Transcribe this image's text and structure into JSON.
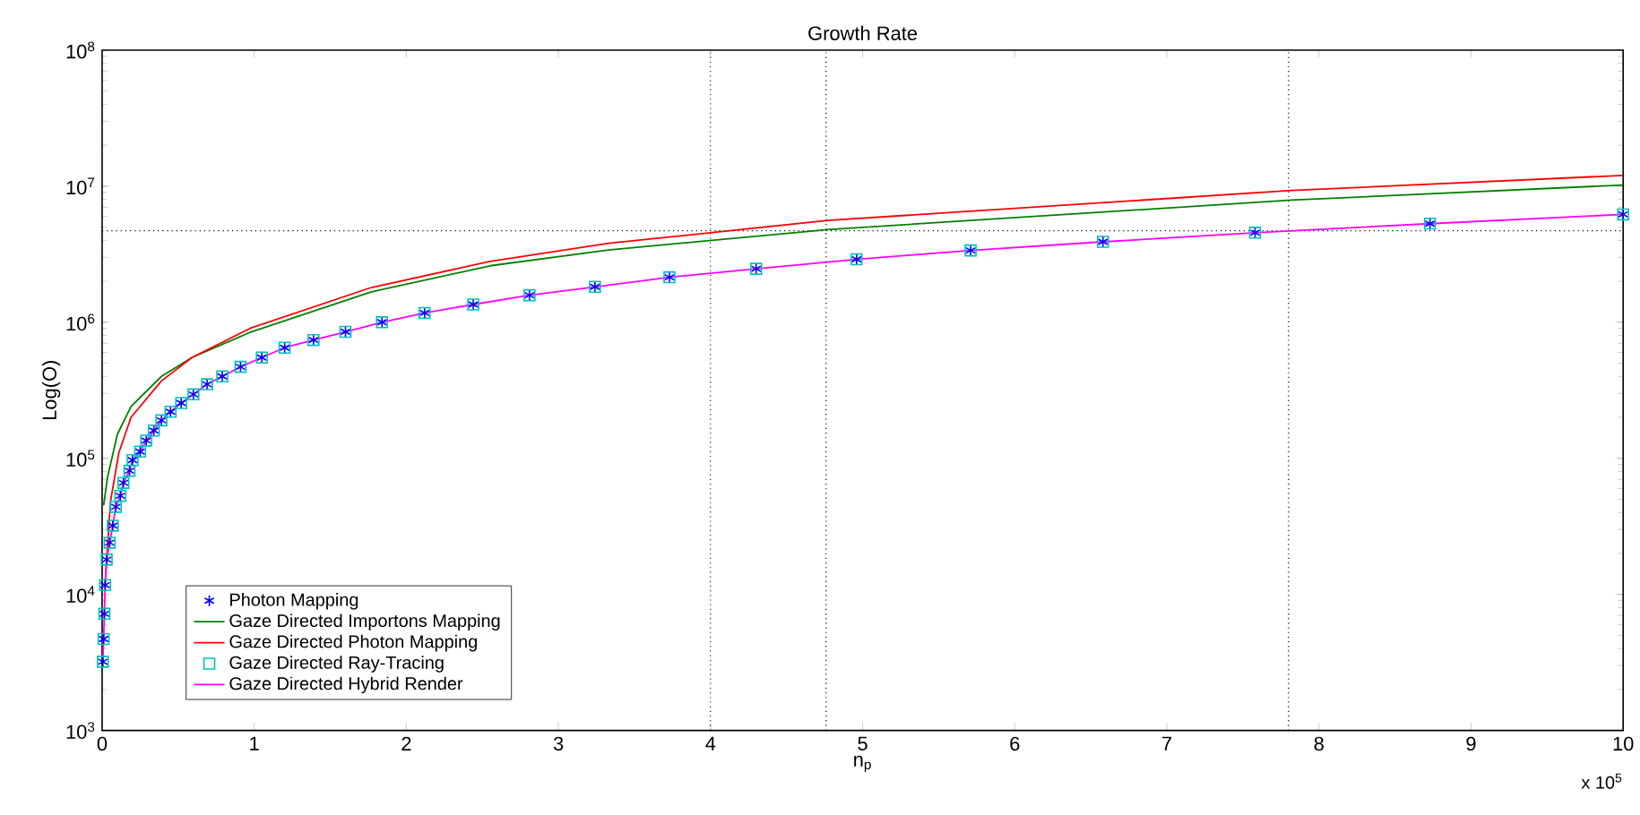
{
  "chart_data": {
    "type": "line",
    "title": "Growth Rate",
    "xlabel": "n$_{p}$",
    "ylabel": "Log(O)",
    "annotations": [
      "x 10$^{5}$"
    ],
    "log": "y",
    "xlim": [
      0,
      10
    ],
    "xticks": [
      0,
      1,
      2,
      3,
      4,
      5,
      6,
      7,
      8,
      9,
      10
    ],
    "ylim": [
      1000,
      100000000
    ],
    "yticks": [
      {
        "value": 1000,
        "label": "10$^{3}$"
      },
      {
        "value": 10000,
        "label": "10$^{4}$"
      },
      {
        "value": 100000,
        "label": "10$^{5}$"
      },
      {
        "value": 1000000,
        "label": "10$^{6}$"
      },
      {
        "value": 10000000,
        "label": "10$^{7}$"
      },
      {
        "value": 100000000,
        "label": "10$^{8}$"
      }
    ],
    "legend": "bottom left",
    "x": [
      0.005,
      0.01,
      0.015,
      0.02,
      0.03,
      0.05,
      0.07,
      0.09,
      0.12,
      0.14,
      0.18,
      0.2,
      0.25,
      0.29,
      0.34,
      0.39,
      0.45,
      0.52,
      0.6,
      0.69,
      0.79,
      0.91,
      1.05,
      1.2,
      1.39,
      1.6,
      1.84,
      2.12,
      2.44,
      2.81,
      3.24,
      3.73,
      4.3,
      4.96,
      5.71,
      6.58,
      7.58,
      8.73,
      10
    ],
    "series": [
      {
        "name": "Photon Mapping",
        "type": "scatter",
        "marker": "cross",
        "color": "#0000ff",
        "values": [
          3200,
          4700,
          7200,
          11700,
          18000,
          24000,
          32000,
          44000,
          53000,
          66000,
          81000,
          97000,
          112000,
          135000,
          160000,
          190000,
          220000,
          255000,
          295000,
          350000,
          400000,
          470000,
          550000,
          650000,
          740000,
          850000,
          1000000,
          1170000,
          1350000,
          1580000,
          1820000,
          2140000,
          2470000,
          2900000,
          3370000,
          3900000,
          4550000,
          5300000,
          6200000
        ]
      },
      {
        "name": "Gaze Directed Importons Mapping",
        "type": "line",
        "line_style": "solid",
        "color": "#008000",
        "x": [
          0.01,
          0.035,
          0.1,
          0.19,
          0.39,
          0.59,
          0.98,
          1.77,
          2.55,
          3.33,
          4.77,
          7.82,
          10
        ],
        "values": [
          45000,
          72000,
          150000,
          240000,
          400000,
          550000,
          850000,
          1670000,
          2600000,
          3400000,
          4800000,
          7900000,
          10200000
        ]
      },
      {
        "name": "Gaze Directed Photon Mapping",
        "type": "line",
        "line_style": "solid",
        "color": "#ff0000",
        "x": [
          0.02,
          0.055,
          0.11,
          0.19,
          0.39,
          0.59,
          0.98,
          1.77,
          2.55,
          3.33,
          4.77,
          7.82,
          10
        ],
        "values": [
          12000,
          48000,
          110000,
          200000,
          370000,
          550000,
          910000,
          1800000,
          2800000,
          3800000,
          5600000,
          9300000,
          12000000
        ]
      },
      {
        "name": "Gaze Directed Ray-Tracing",
        "type": "scatter",
        "marker": "square",
        "color": "#00bfbf",
        "values": [
          3200,
          4700,
          7200,
          11700,
          18000,
          24000,
          32000,
          44000,
          53000,
          66000,
          81000,
          97000,
          112000,
          135000,
          160000,
          190000,
          220000,
          255000,
          295000,
          350000,
          400000,
          470000,
          550000,
          650000,
          740000,
          850000,
          1000000,
          1170000,
          1350000,
          1580000,
          1820000,
          2140000,
          2470000,
          2900000,
          3370000,
          3900000,
          4550000,
          5300000,
          6200000
        ]
      },
      {
        "name": "Gaze Directed Hybrid Render",
        "type": "line",
        "line_style": "solid",
        "color": "#ff00ff",
        "values": [
          3200,
          4700,
          7200,
          11700,
          18000,
          24000,
          32000,
          44000,
          53000,
          66000,
          81000,
          97000,
          112000,
          135000,
          160000,
          190000,
          220000,
          255000,
          295000,
          350000,
          400000,
          470000,
          550000,
          650000,
          740000,
          850000,
          1000000,
          1170000,
          1350000,
          1580000,
          1820000,
          2140000,
          2470000,
          2900000,
          3370000,
          3900000,
          4550000,
          5300000,
          6200000
        ]
      }
    ],
    "ref_lines": [
      {
        "axis": "x",
        "value": 4,
        "line_style": "dotted"
      },
      {
        "axis": "x",
        "value": 4.76,
        "line_style": "dotted"
      },
      {
        "axis": "x",
        "value": 7.8,
        "line_style": "dotted"
      },
      {
        "axis": "y",
        "value": 4700000,
        "line_style": "dotted"
      }
    ]
  }
}
